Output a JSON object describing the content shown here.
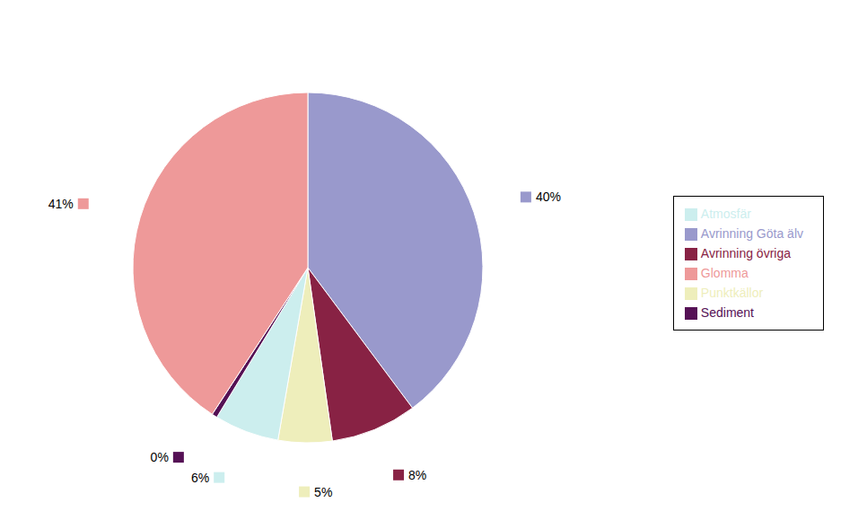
{
  "chart_data": {
    "type": "pie",
    "categories": [
      "Avrinning Göta älv",
      "Avrinning övriga",
      "Punktkällor",
      "Atmosfär",
      "Sediment",
      "Glomma"
    ],
    "values": [
      40,
      8,
      5,
      6,
      0.5,
      41
    ],
    "value_labels": [
      "40%",
      "8%",
      "5%",
      "6%",
      "0%",
      "41%"
    ],
    "data_labels": true,
    "colors": [
      "#9999cc",
      "#882244",
      "#eeeebb",
      "#cceeee",
      "#551155",
      "#ee9999"
    ],
    "legend": "right"
  }
}
